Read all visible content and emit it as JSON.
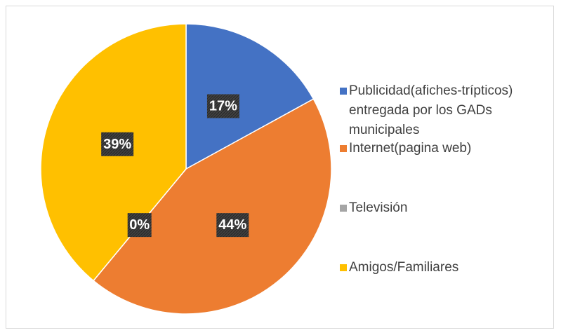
{
  "chart_data": {
    "type": "pie",
    "categories": [
      "Publicidad(afiches-trípticos) entregada por los GADs municipales",
      "Internet(pagina web)",
      "Televisión",
      "Amigos/Familiares"
    ],
    "values": [
      17,
      44,
      0,
      39
    ],
    "value_labels": [
      "17%",
      "44%",
      "0%",
      "39%"
    ],
    "colors": [
      "#4472c4",
      "#ed7d31",
      "#a5a5a5",
      "#ffc000"
    ],
    "legend": "right"
  }
}
